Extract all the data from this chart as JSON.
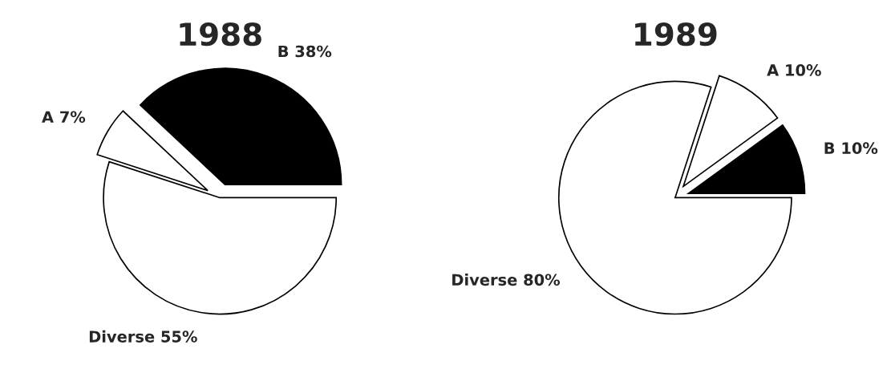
{
  "chart_data": [
    {
      "type": "pie",
      "title": "1988",
      "categories": [
        "B",
        "A",
        "Diverse"
      ],
      "values": [
        38,
        7,
        55
      ],
      "value_labels": [
        "38%",
        "7%",
        "55%"
      ],
      "colors": [
        "#000000",
        "#ffffff",
        "#ffffff"
      ]
    },
    {
      "type": "pie",
      "title": "1989",
      "categories": [
        "B",
        "A",
        "Diverse"
      ],
      "values": [
        10,
        10,
        80
      ],
      "value_labels": [
        "10%",
        "10%",
        "80%"
      ],
      "colors": [
        "#000000",
        "#ffffff",
        "#ffffff"
      ]
    }
  ]
}
